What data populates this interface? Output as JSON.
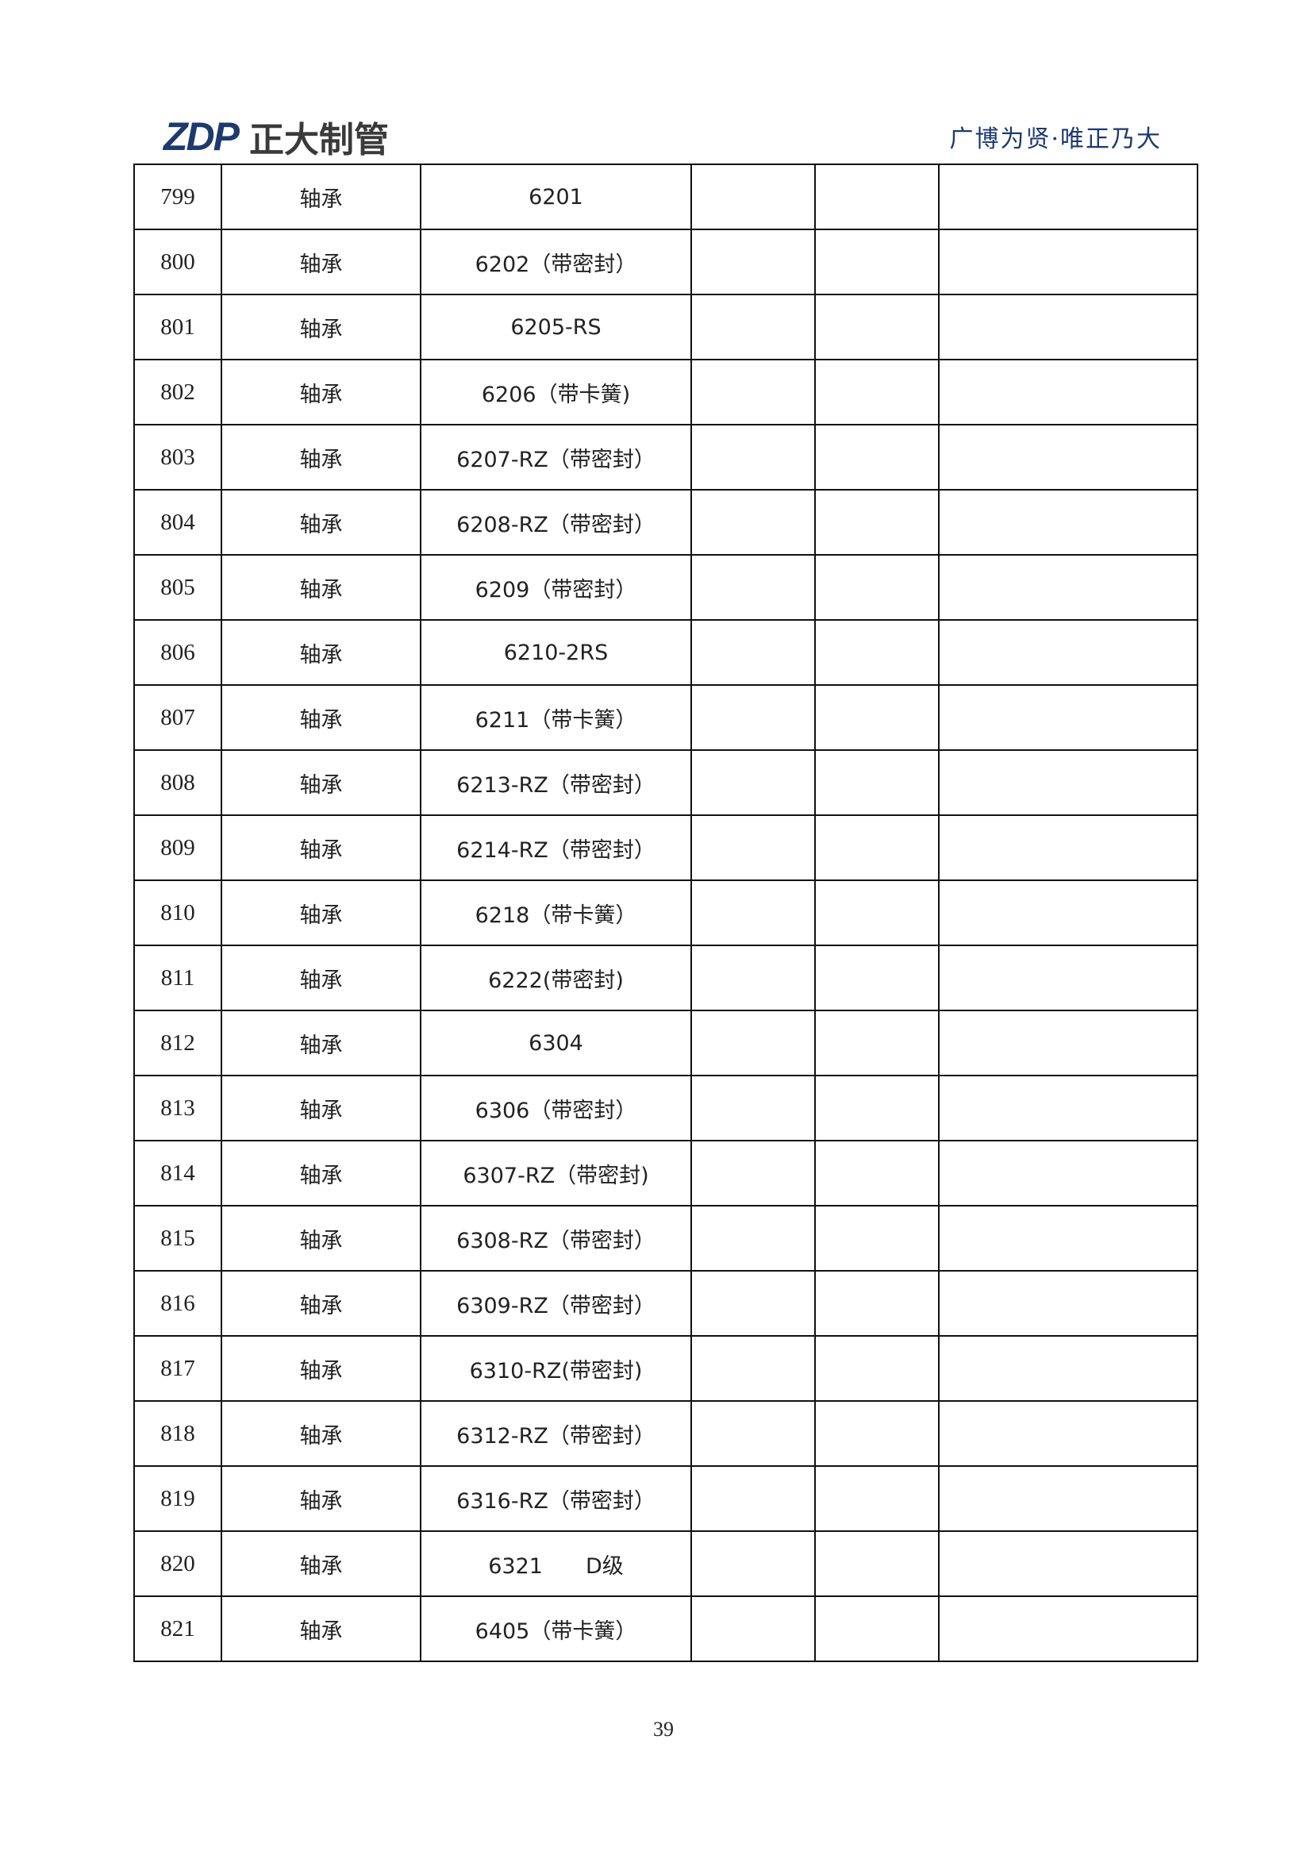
{
  "header": {
    "logo_mark": "ZDP",
    "logo_text": "正大制管",
    "slogan": "广博为贤·唯正乃大"
  },
  "colors": {
    "brand": "#1d3a6e"
  },
  "table": {
    "rows": [
      {
        "no": "799",
        "name": "轴承",
        "spec": "6201"
      },
      {
        "no": "800",
        "name": "轴承",
        "spec": "6202（带密封）"
      },
      {
        "no": "801",
        "name": "轴承",
        "spec": "6205-RS"
      },
      {
        "no": "802",
        "name": "轴承",
        "spec": "6206（带卡簧)"
      },
      {
        "no": "803",
        "name": "轴承",
        "spec": "6207-RZ（带密封）"
      },
      {
        "no": "804",
        "name": "轴承",
        "spec": "6208-RZ（带密封）"
      },
      {
        "no": "805",
        "name": "轴承",
        "spec": "6209（带密封）"
      },
      {
        "no": "806",
        "name": "轴承",
        "spec": "6210-2RS"
      },
      {
        "no": "807",
        "name": "轴承",
        "spec": "6211（带卡簧）"
      },
      {
        "no": "808",
        "name": "轴承",
        "spec": "6213-RZ（带密封）"
      },
      {
        "no": "809",
        "name": "轴承",
        "spec": "6214-RZ（带密封）"
      },
      {
        "no": "810",
        "name": "轴承",
        "spec": "6218（带卡簧）"
      },
      {
        "no": "811",
        "name": "轴承",
        "spec": "6222(带密封)"
      },
      {
        "no": "812",
        "name": "轴承",
        "spec": "6304"
      },
      {
        "no": "813",
        "name": "轴承",
        "spec": "6306（带密封）"
      },
      {
        "no": "814",
        "name": "轴承",
        "spec": "6307-RZ（带密封)"
      },
      {
        "no": "815",
        "name": "轴承",
        "spec": "6308-RZ（带密封）"
      },
      {
        "no": "816",
        "name": "轴承",
        "spec": "6309-RZ（带密封）"
      },
      {
        "no": "817",
        "name": "轴承",
        "spec": "6310-RZ(带密封)"
      },
      {
        "no": "818",
        "name": "轴承",
        "spec": "6312-RZ（带密封）"
      },
      {
        "no": "819",
        "name": "轴承",
        "spec": "6316-RZ（带密封）"
      },
      {
        "no": "820",
        "name": "轴承",
        "spec": "6321　　D级"
      },
      {
        "no": "821",
        "name": "轴承",
        "spec": "6405（带卡簧）"
      }
    ]
  },
  "footer": {
    "page_number": "39"
  }
}
